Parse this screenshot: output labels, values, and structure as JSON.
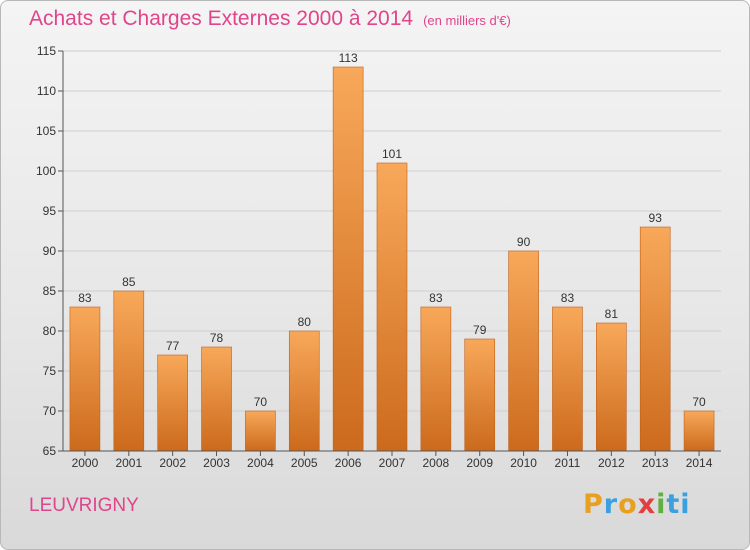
{
  "header": {
    "title": "Achats et Charges Externes 2000 à 2014",
    "unit": "(en milliers d'€)"
  },
  "footer": {
    "city": "LEUVRIGNY",
    "brand": [
      "P",
      "r",
      "o",
      "x",
      "i",
      "ti"
    ]
  },
  "chart_data": {
    "type": "bar",
    "title": "Achats et Charges Externes 2000 à 2014",
    "subtitle": "(en milliers d'€)",
    "categories": [
      "2000",
      "2001",
      "2002",
      "2003",
      "2004",
      "2005",
      "2006",
      "2007",
      "2008",
      "2009",
      "2010",
      "2011",
      "2012",
      "2013",
      "2014"
    ],
    "values": [
      83,
      85,
      77,
      78,
      70,
      80,
      113,
      101,
      83,
      79,
      90,
      83,
      81,
      93,
      70
    ],
    "ylim": [
      65,
      115
    ],
    "yticks": [
      65,
      70,
      75,
      80,
      85,
      90,
      95,
      100,
      105,
      110,
      115
    ],
    "grid": true,
    "colors": {
      "bar_top": "#f8a85a",
      "bar_bottom": "#cc6a1c",
      "bar_edge": "#c0601a",
      "grid": "#cfcfcf"
    }
  }
}
